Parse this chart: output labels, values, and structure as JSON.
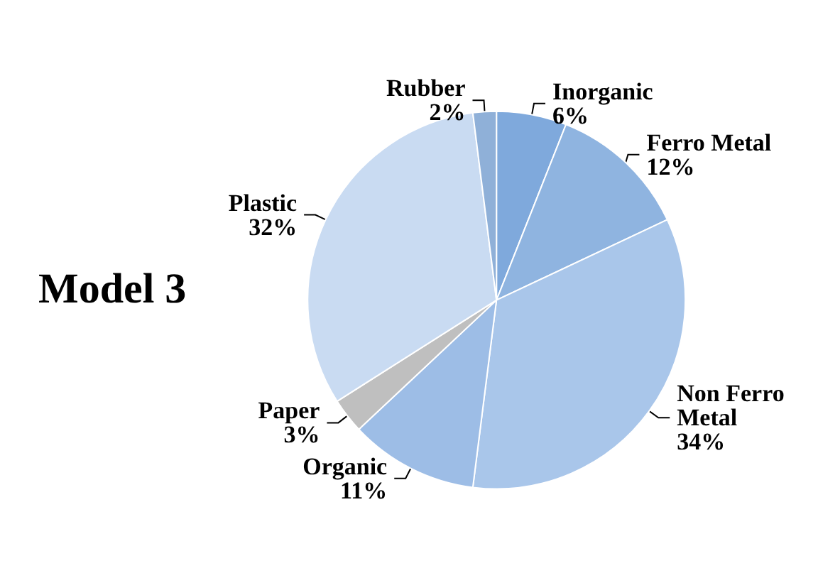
{
  "chart_data": {
    "type": "pie",
    "title": "Model 3",
    "categories": [
      "Inorganic",
      "Ferro Metal",
      "Non Ferro Metal",
      "Organic",
      "Paper",
      "Plastic",
      "Rubber"
    ],
    "values": [
      6,
      12,
      34,
      11,
      3,
      32,
      2
    ],
    "value_labels": [
      "6%",
      "12%",
      "34%",
      "11%",
      "3%",
      "32%",
      "2%"
    ],
    "colors": [
      "#7fa9dc",
      "#8fb4e0",
      "#a9c6ea",
      "#9dbde6",
      "#bfbfbf",
      "#c9dbf2",
      "#8fb0d8"
    ],
    "legend": false
  }
}
